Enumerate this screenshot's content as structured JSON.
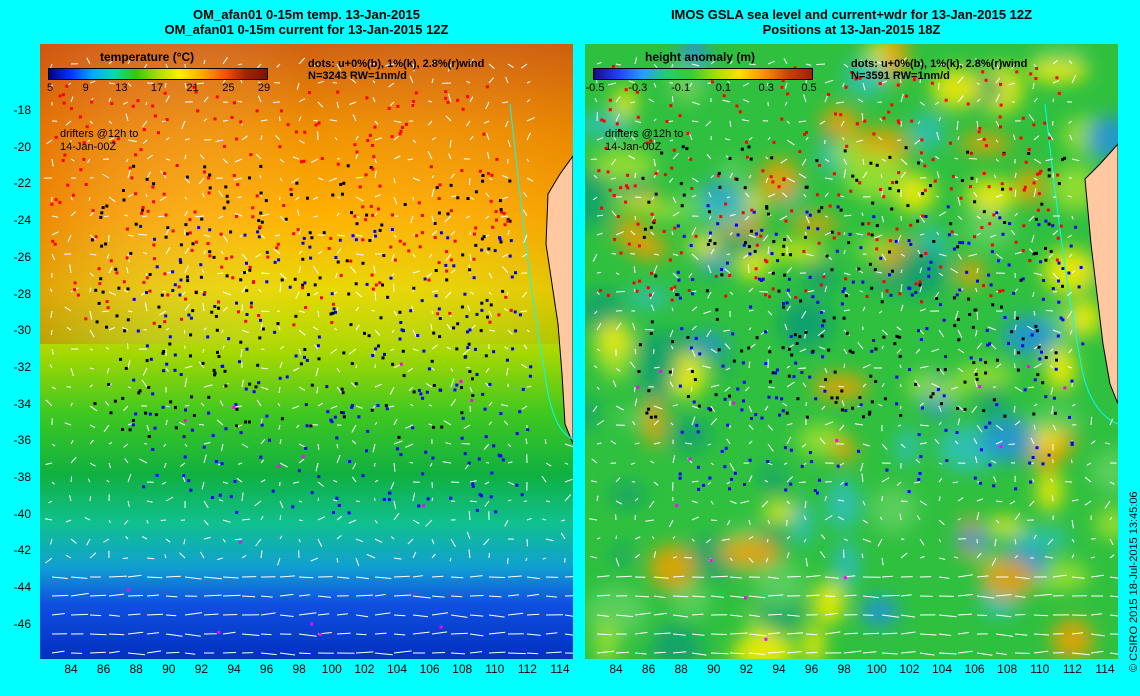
{
  "left_panel": {
    "title_line1": "OM_afan01 0-15m temp. 13-Jan-2015",
    "title_line2": "OM_afan01 0-15m current for 13-Jan-2015 12Z",
    "colorbar_title": "temperature (°C)",
    "colorbar_ticks": [
      "5",
      "9",
      "13",
      "17",
      "21",
      "25",
      "29"
    ],
    "legend_line1": "dots: u+0%(b), 1%(k), 2.8%(r)wind",
    "legend_line2": "N=3243 RW=1nm/d",
    "drifter_note_line1": "drifters @12h to",
    "drifter_note_line2": "14-Jan-00Z"
  },
  "right_panel": {
    "title_line1": "IMOS GSLA sea level and current+wdr for 13-Jan-2015 12Z",
    "title_line2": "Positions at 13-Jan-2015 18Z",
    "colorbar_title": "height anomaly (m)",
    "colorbar_ticks": [
      "-0.5",
      "-0.3",
      "-0.1",
      "0.1",
      "0.3",
      "0.5"
    ],
    "legend_line1": "dots: u+0%(b), 1%(k), 2.8%(r)wind",
    "legend_line2": "N=3591 RW=1nm/d",
    "drifter_note_line1": "drifters @12h to",
    "drifter_note_line2": "14-Jan-00Z"
  },
  "lat_labels": [
    "-18",
    "-20",
    "-22",
    "-24",
    "-26",
    "-28",
    "-30",
    "-32",
    "-34",
    "-36",
    "-38",
    "-40",
    "-42",
    "-44",
    "-46"
  ],
  "lon_labels": [
    "84",
    "86",
    "88",
    "90",
    "92",
    "94",
    "96",
    "98",
    "100",
    "102",
    "104",
    "106",
    "108",
    "110",
    "112",
    "114"
  ],
  "credit": "© CSIRO 2015   18-Jul-2015 13:45:06",
  "colors": {
    "background": "#00ffff",
    "land": "#ffc8a0",
    "drifter_blue": "#0000ff",
    "drifter_black": "#000000",
    "drifter_red": "#ff0000",
    "arrow": "#ffffff"
  }
}
